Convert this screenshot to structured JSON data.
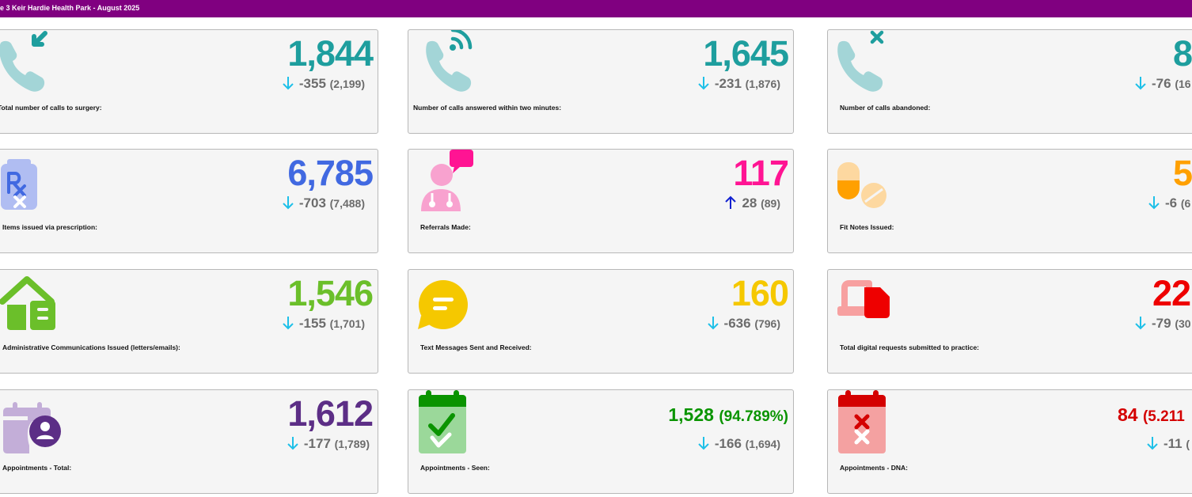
{
  "header": {
    "title": "e 3 Keir Hardie Health Park - August 2025"
  },
  "colors": {
    "header_bg": "#800080",
    "arrow_down": "#1ec0e8",
    "arrow_up": "#1020d0",
    "delta_text": "#6c6c6c"
  },
  "cards": [
    {
      "label": "Total number of calls to surgery:",
      "value": "1,844",
      "delta": "-355",
      "previous": "(2,199)",
      "trend": "down",
      "icon": "phone-incoming-icon",
      "color": "#1e9e9e"
    },
    {
      "label": "Number of calls answered within two minutes:",
      "value": "1,645",
      "delta": "-231",
      "previous": "(1,876)",
      "trend": "down",
      "icon": "phone-ringing-icon",
      "color": "#1e9e9e"
    },
    {
      "label": "Number of calls abandoned:",
      "value": "8",
      "delta": "-76",
      "previous": "(16",
      "trend": "down",
      "icon": "phone-missed-icon",
      "color": "#1e9e9e"
    },
    {
      "label": "Items issued via prescription:",
      "value": "6,785",
      "delta": "-703",
      "previous": "(7,488)",
      "trend": "down",
      "icon": "prescription-icon",
      "color": "#4169e1"
    },
    {
      "label": "Referrals Made:",
      "value": "117",
      "delta": "28",
      "previous": "(89)",
      "trend": "up",
      "icon": "doctor-chat-icon",
      "color": "#ff1493"
    },
    {
      "label": "Fit Notes Issued:",
      "value": "5",
      "delta": "-6",
      "previous": "(6",
      "trend": "down",
      "icon": "pills-icon",
      "color": "#ffa000"
    },
    {
      "label": "Administrative Communications Issued (letters/emails):",
      "value": "1,546",
      "delta": "-155",
      "previous": "(1,701)",
      "trend": "down",
      "icon": "mail-home-icon",
      "color": "#6bbf2a"
    },
    {
      "label": "Text Messages Sent and Received:",
      "value": "160",
      "delta": "-636",
      "previous": "(796)",
      "trend": "down",
      "icon": "text-message-icon",
      "color": "#f5c800"
    },
    {
      "label": "Total digital requests submitted to practice:",
      "value": "22",
      "delta": "-79",
      "previous": "(30",
      "trend": "down",
      "icon": "digital-request-icon",
      "color": "#ee0000"
    },
    {
      "label": "Appointments - Total:",
      "value": "1,612",
      "delta": "-177",
      "previous": "(1,789)",
      "trend": "down",
      "icon": "calendar-user-icon",
      "color": "#5c2e86"
    },
    {
      "label": "Appointments - Seen:",
      "value": "1,528",
      "percent": "(94.789%)",
      "delta": "-166",
      "previous": "(1,694)",
      "trend": "down",
      "icon": "calendar-check-icon",
      "color": "#0a9400"
    },
    {
      "label": "Appointments - DNA:",
      "value": "84",
      "percent": "(5.211",
      "delta": "-11",
      "previous": "(",
      "trend": "down",
      "icon": "calendar-x-icon",
      "color": "#d40000"
    }
  ]
}
